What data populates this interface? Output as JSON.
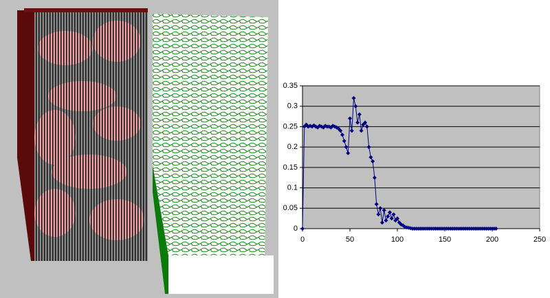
{
  "chart_data": {
    "type": "line",
    "marker": "diamond",
    "color": "#000080",
    "plot_background": "#c0c0c0",
    "grid": true,
    "x": [
      0,
      2,
      4,
      6,
      8,
      10,
      12,
      14,
      16,
      18,
      20,
      22,
      24,
      26,
      28,
      30,
      32,
      34,
      36,
      38,
      40,
      42,
      44,
      46,
      48,
      50,
      52,
      54,
      56,
      58,
      60,
      62,
      64,
      66,
      68,
      70,
      72,
      74,
      76,
      78,
      80,
      82,
      84,
      86,
      88,
      90,
      92,
      94,
      96,
      98,
      100,
      102,
      104,
      106,
      108,
      110,
      112,
      114,
      116,
      118,
      120,
      122,
      124,
      126,
      128,
      130,
      132,
      134,
      136,
      138,
      140,
      142,
      144,
      146,
      148,
      150,
      152,
      154,
      156,
      158,
      160,
      162,
      164,
      166,
      168,
      170,
      172,
      174,
      176,
      178,
      180,
      182,
      184,
      186,
      188,
      190,
      192,
      194,
      196,
      198,
      200,
      202,
      204
    ],
    "values": [
      0,
      0.25,
      0.255,
      0.25,
      0.252,
      0.25,
      0.253,
      0.25,
      0.248,
      0.252,
      0.25,
      0.248,
      0.252,
      0.25,
      0.25,
      0.248,
      0.252,
      0.25,
      0.248,
      0.245,
      0.24,
      0.23,
      0.215,
      0.2,
      0.185,
      0.27,
      0.24,
      0.32,
      0.3,
      0.26,
      0.28,
      0.24,
      0.255,
      0.26,
      0.25,
      0.2,
      0.175,
      0.165,
      0.125,
      0.06,
      0.035,
      0.05,
      0.015,
      0.045,
      0.02,
      0.03,
      0.04,
      0.025,
      0.035,
      0.02,
      0.025,
      0.015,
      0.01,
      0.008,
      0.004,
      0.003,
      0.002,
      0.001,
      0,
      0,
      0,
      0,
      0,
      0,
      0,
      0,
      0,
      0,
      0,
      0,
      0,
      0,
      0,
      0,
      0,
      0,
      0,
      0,
      0,
      0,
      0,
      0,
      0,
      0,
      0,
      0,
      0,
      0,
      0,
      0,
      0,
      0,
      0,
      0,
      0,
      0,
      0,
      0,
      0,
      0,
      0,
      0,
      0
    ],
    "xlim": [
      0,
      250
    ],
    "xticks": [
      0,
      50,
      100,
      150,
      200,
      250
    ],
    "ylim": [
      0,
      0.35
    ],
    "yticks": [
      0,
      0.05,
      0.1,
      0.15,
      0.2,
      0.25,
      0.3,
      0.35
    ]
  }
}
